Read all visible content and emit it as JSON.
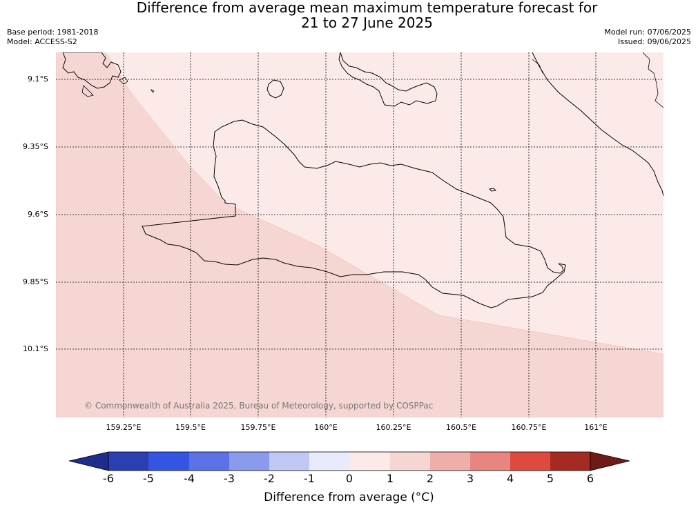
{
  "header": {
    "title_line1": "Difference from average mean maximum temperature forecast for",
    "title_line2": "21 to 27 June 2025",
    "base_period": "Base period: 1981-2018",
    "model": "Model: ACCESS-S2",
    "model_run": "Model run: 07/06/2025",
    "issued": "Issued: 09/06/2025"
  },
  "map": {
    "lat_labels": [
      "9.1°S",
      "9.35°S",
      "9.6°S",
      "9.85°S",
      "10.1°S"
    ],
    "lon_labels": [
      "159.25°E",
      "159.5°E",
      "159.75°E",
      "160°E",
      "160.25°E",
      "160.5°E",
      "160.75°E",
      "161°E"
    ],
    "copyright": "© Commonwealth of Australia 2025, Bureau of Meteorology, supported by COSPPac",
    "fill_colors": {
      "light": "#fbeae8",
      "medium": "#f5d6d3"
    },
    "value_ranges": [
      "0 to 1",
      "1 to 2"
    ]
  },
  "colorbar": {
    "title": "Difference from average (°C)",
    "ticks": [
      "-6",
      "-5",
      "-4",
      "-3",
      "-2",
      "-1",
      "0",
      "1",
      "2",
      "3",
      "4",
      "5",
      "6"
    ],
    "colors": [
      "#1e2c8c",
      "#2a3fb2",
      "#3355e1",
      "#5a72e6",
      "#8a9aec",
      "#c0c8f4",
      "#e8ebfb",
      "#fbeae8",
      "#f5d6d3",
      "#eeafaa",
      "#e7867e",
      "#dd4a3e",
      "#a52a22",
      "#6e1a16"
    ]
  }
}
